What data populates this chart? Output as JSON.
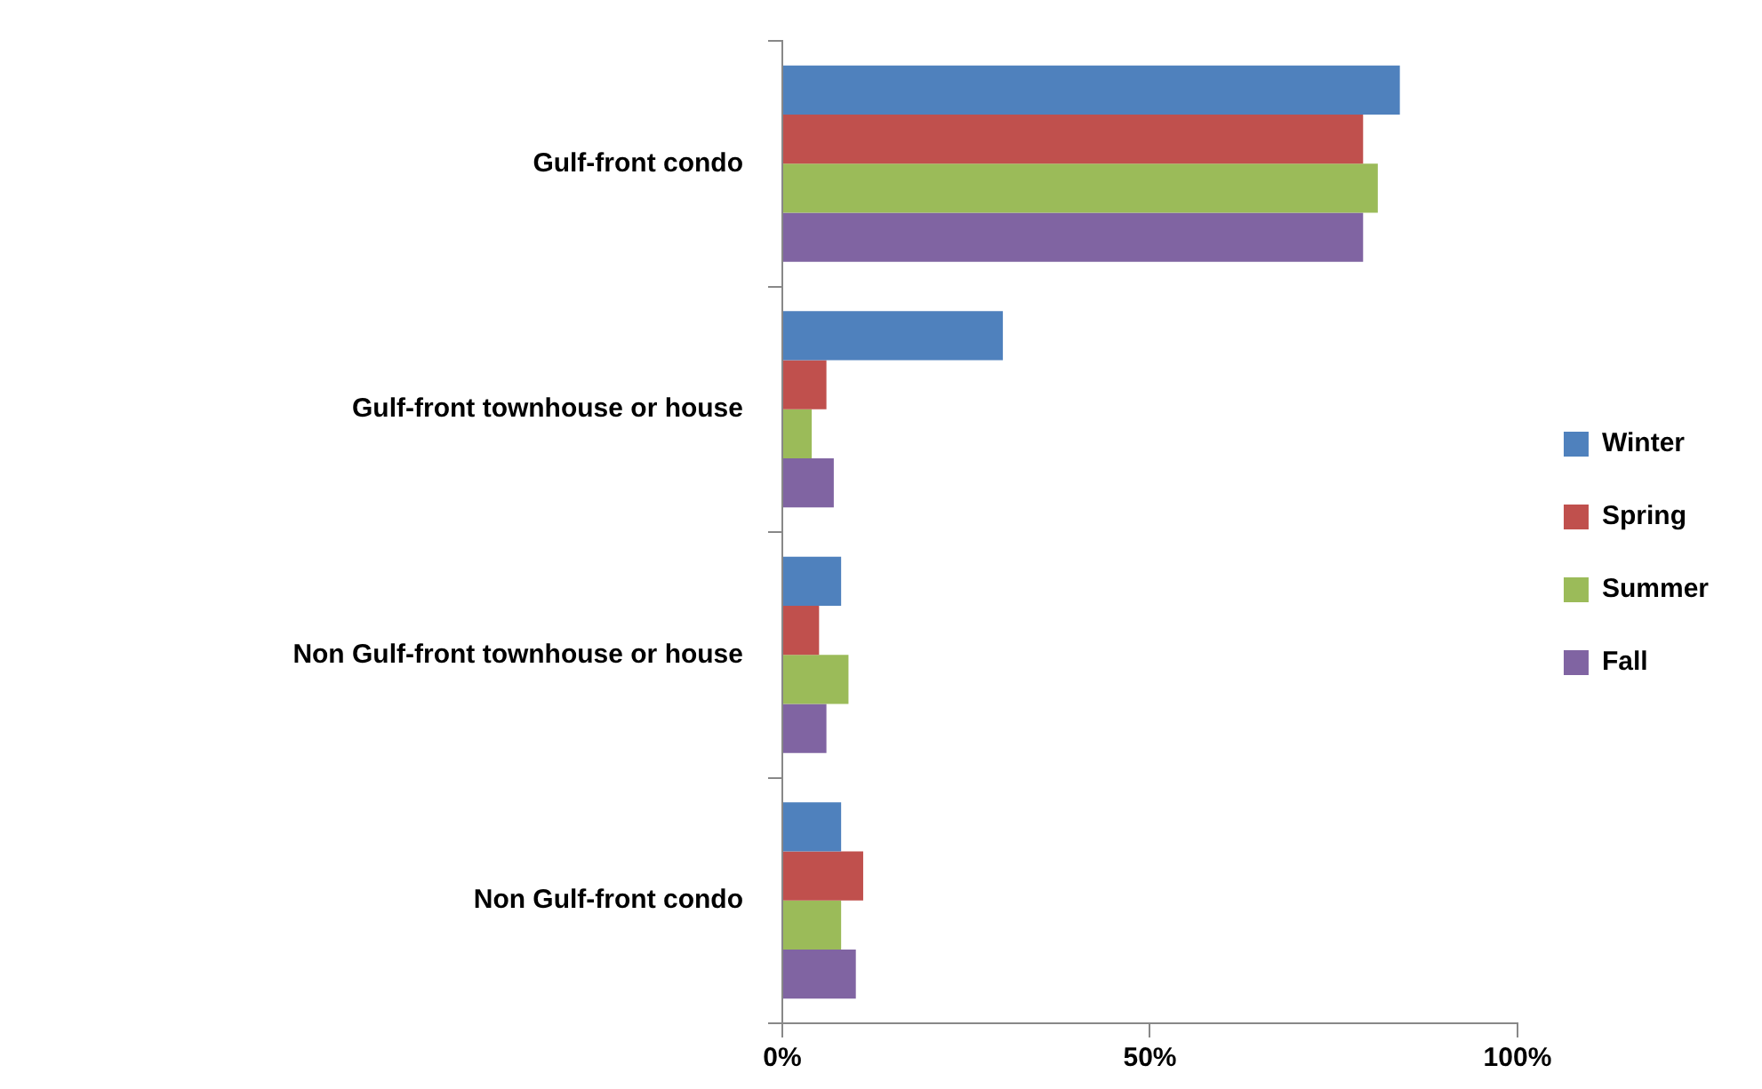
{
  "chart_data": {
    "type": "bar",
    "orientation": "horizontal",
    "categories": [
      "Gulf-front condo",
      "Gulf-front townhouse or house",
      "Non Gulf-front townhouse or house",
      "Non Gulf-front condo"
    ],
    "series": [
      {
        "name": "Winter",
        "color": "#4f81bd",
        "values": [
          84,
          30,
          8,
          8
        ]
      },
      {
        "name": "Spring",
        "color": "#c0504d",
        "values": [
          79,
          6,
          5,
          11
        ]
      },
      {
        "name": "Summer",
        "color": "#9bbb59",
        "values": [
          81,
          4,
          9,
          8
        ]
      },
      {
        "name": "Fall",
        "color": "#8064a2",
        "values": [
          79,
          7,
          6,
          10
        ]
      }
    ],
    "xlim": [
      0,
      100
    ],
    "xticks": [
      {
        "value": 0,
        "label": "0%"
      },
      {
        "value": 50,
        "label": "50%"
      },
      {
        "value": 100,
        "label": "100%"
      }
    ],
    "grid": false,
    "legend": "right"
  }
}
